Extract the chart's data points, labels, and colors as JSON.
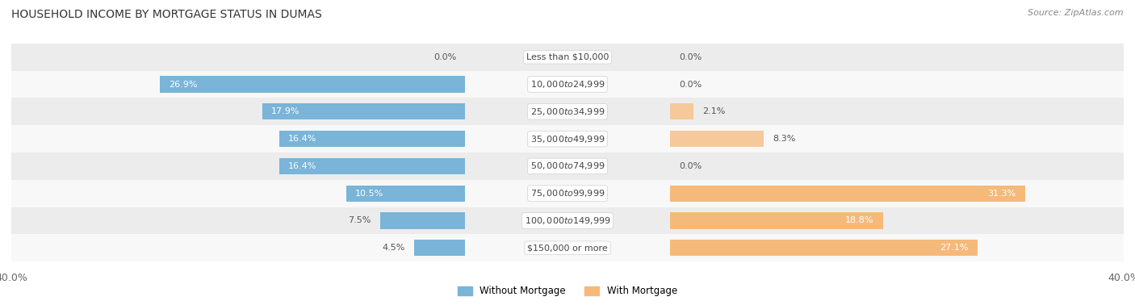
{
  "title": "HOUSEHOLD INCOME BY MORTGAGE STATUS IN DUMAS",
  "source": "Source: ZipAtlas.com",
  "categories": [
    "Less than $10,000",
    "$10,000 to $24,999",
    "$25,000 to $34,999",
    "$35,000 to $49,999",
    "$50,000 to $74,999",
    "$75,000 to $99,999",
    "$100,000 to $149,999",
    "$150,000 or more"
  ],
  "without_mortgage": [
    0.0,
    26.9,
    17.9,
    16.4,
    16.4,
    10.5,
    7.5,
    4.5
  ],
  "with_mortgage": [
    0.0,
    0.0,
    2.1,
    8.3,
    0.0,
    31.3,
    18.8,
    27.1
  ],
  "without_mortgage_color": "#7ab4d8",
  "with_mortgage_color": "#f5b97a",
  "with_mortgage_color_light": "#f5c99a",
  "row_bg_odd": "#ececec",
  "row_bg_even": "#f8f8f8",
  "xlim": 40.0,
  "legend_labels": [
    "Without Mortgage",
    "With Mortgage"
  ],
  "title_fontsize": 10,
  "source_fontsize": 8,
  "axis_fontsize": 9,
  "label_fontsize": 8,
  "category_fontsize": 8,
  "bar_height": 0.6
}
